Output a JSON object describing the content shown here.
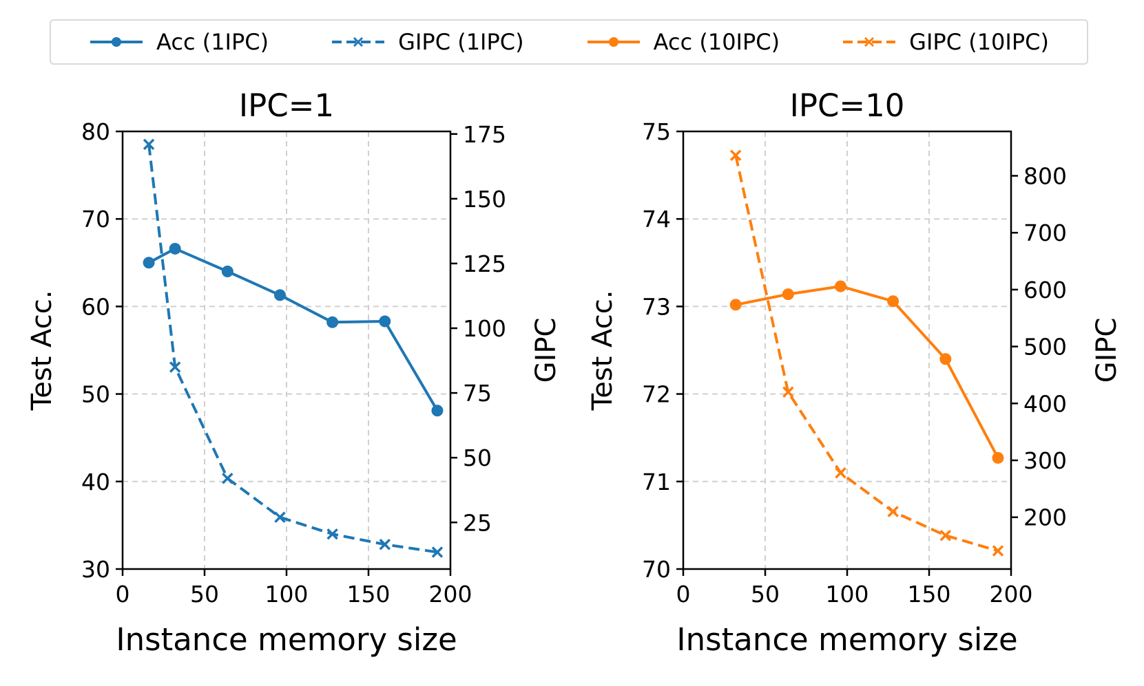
{
  "legend": {
    "position": "top-center",
    "items": [
      {
        "label": "Acc (1IPC)",
        "color": "#1f77b4",
        "style": "solid",
        "marker": "circle"
      },
      {
        "label": "GIPC (1IPC)",
        "color": "#1f77b4",
        "style": "dashed",
        "marker": "x"
      },
      {
        "label": "Acc (10IPC)",
        "color": "#ff7f0e",
        "style": "solid",
        "marker": "circle"
      },
      {
        "label": "GIPC (10IPC)",
        "color": "#ff7f0e",
        "style": "dashed",
        "marker": "x"
      }
    ]
  },
  "chart_data": [
    {
      "type": "line",
      "title": "IPC=1",
      "xlabel": "Instance memory size",
      "ylabel": "Test Acc.",
      "y2label": "GIPC",
      "xlim": [
        0,
        200
      ],
      "ylim": [
        30,
        80
      ],
      "y2lim": [
        7,
        176
      ],
      "xticks": [
        0,
        50,
        100,
        150,
        200
      ],
      "yticks": [
        30,
        40,
        50,
        60,
        70,
        80
      ],
      "y2ticks": [
        25,
        50,
        75,
        100,
        125,
        150,
        175
      ],
      "grid": true,
      "series": [
        {
          "name": "Acc (1IPC)",
          "axis": "left",
          "color": "#1f77b4",
          "style": "solid",
          "marker": "circle",
          "x": [
            16,
            32,
            64,
            96,
            128,
            160,
            192
          ],
          "y": [
            65.0,
            66.6,
            64.0,
            61.3,
            58.2,
            58.3,
            48.1
          ]
        },
        {
          "name": "GIPC (1IPC)",
          "axis": "right",
          "color": "#1f77b4",
          "style": "dashed",
          "marker": "x",
          "x": [
            16,
            32,
            64,
            96,
            128,
            160,
            192
          ],
          "y": [
            171,
            85,
            42,
            27,
            20.5,
            16.5,
            13.5
          ]
        }
      ]
    },
    {
      "type": "line",
      "title": "IPC=10",
      "xlabel": "Instance memory size",
      "ylabel": "Test Acc.",
      "y2label": "GIPC",
      "xlim": [
        0,
        200
      ],
      "ylim": [
        70,
        75
      ],
      "y2lim": [
        109,
        878
      ],
      "xticks": [
        0,
        50,
        100,
        150,
        200
      ],
      "yticks": [
        70,
        71,
        72,
        73,
        74,
        75
      ],
      "y2ticks": [
        200,
        300,
        400,
        500,
        600,
        700,
        800
      ],
      "grid": true,
      "series": [
        {
          "name": "Acc (10IPC)",
          "axis": "left",
          "color": "#ff7f0e",
          "style": "solid",
          "marker": "circle",
          "x": [
            32,
            64,
            96,
            128,
            160,
            192
          ],
          "y": [
            73.02,
            73.14,
            73.23,
            73.06,
            72.4,
            71.27
          ]
        },
        {
          "name": "GIPC (10IPC)",
          "axis": "right",
          "color": "#ff7f0e",
          "style": "dashed",
          "marker": "x",
          "x": [
            32,
            64,
            96,
            128,
            160,
            192
          ],
          "y": [
            836,
            420,
            278,
            210,
            168,
            141
          ]
        }
      ]
    }
  ]
}
